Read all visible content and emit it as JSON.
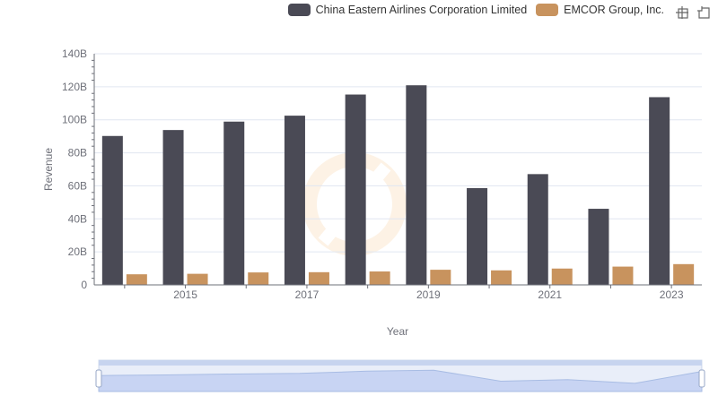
{
  "chart_data": {
    "type": "bar",
    "xlabel": "Year",
    "ylabel": "Revenue",
    "ylim": [
      0,
      140000000000
    ],
    "yticks": [
      "0",
      "20B",
      "40B",
      "60B",
      "80B",
      "100B",
      "120B",
      "140B"
    ],
    "categories": [
      "2014",
      "2015",
      "2016",
      "2017",
      "2018",
      "2019",
      "2020",
      "2021",
      "2022",
      "2023"
    ],
    "xtick_labels": [
      "",
      "2015",
      "",
      "2017",
      "",
      "2019",
      "",
      "2021",
      "",
      "2023"
    ],
    "series": [
      {
        "name": "China Eastern Airlines Corporation Limited",
        "color": "#4a4a55",
        "values": [
          90200000000,
          93800000000,
          98900000000,
          102500000000,
          115300000000,
          120900000000,
          58600000000,
          67100000000,
          46100000000,
          113700000000
        ]
      },
      {
        "name": "EMCOR Group, Inc.",
        "color": "#c8935e",
        "values": [
          6420000000,
          6720000000,
          7550000000,
          7690000000,
          8130000000,
          9170000000,
          8800000000,
          9900000000,
          11080000000,
          12580000000
        ]
      }
    ],
    "grid": true,
    "legend_position": "top-right"
  },
  "toolbox": {
    "zoom_icon": "data-zoom-icon",
    "restore_icon": "restore-icon"
  }
}
